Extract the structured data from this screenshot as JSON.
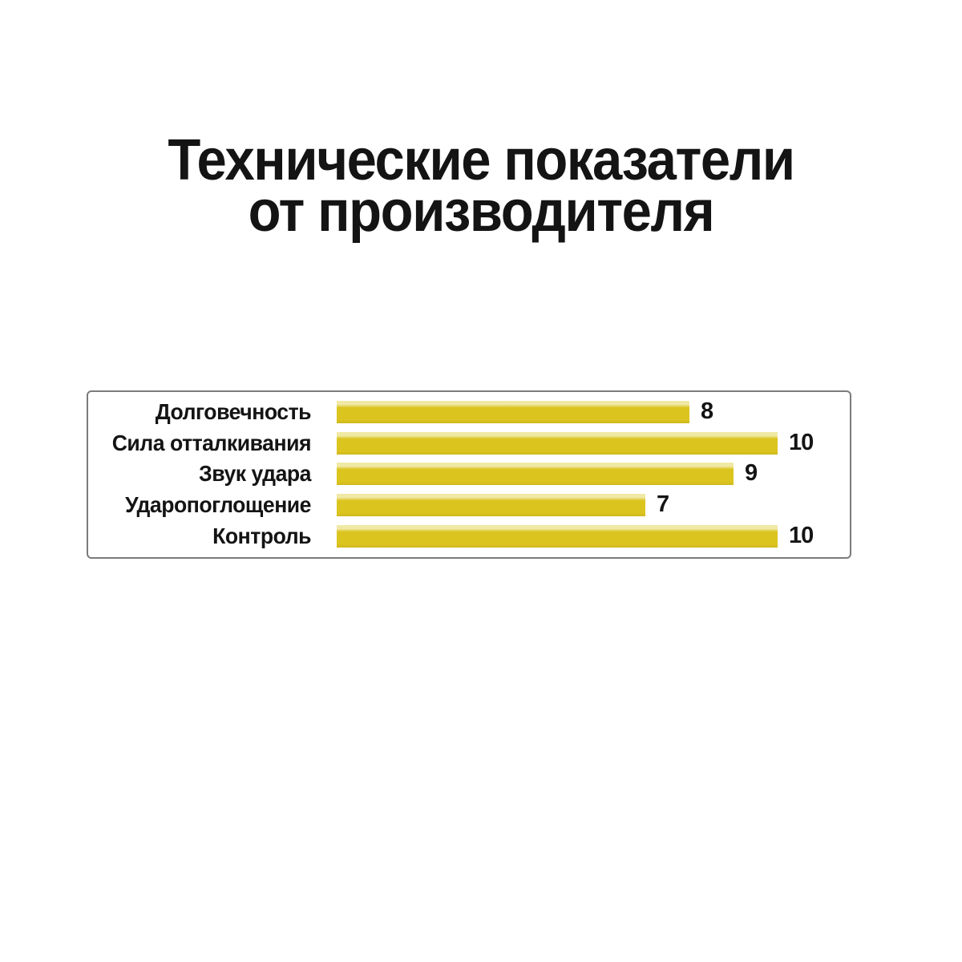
{
  "header": {
    "title_line1": "Технические показатели",
    "title_line2": "от производителя"
  },
  "chart_data": {
    "type": "bar",
    "orientation": "horizontal",
    "title": "Технические показатели от производителя",
    "categories": [
      "Долговечность",
      "Сила отталкивания",
      "Звук удара",
      "Ударопоглощение",
      "Контроль"
    ],
    "values": [
      8,
      10,
      9,
      7,
      10
    ],
    "xlim": [
      0,
      10
    ],
    "value_labels_shown": true,
    "axis_ticks_shown": false,
    "grid": false,
    "legend_position": "none",
    "colors": {
      "bar": "#dcc41f",
      "bar_highlight_top": "#f0e9a6",
      "bar_shade_bottom": "#cdb71c",
      "panel_border": "#7b7b7b",
      "text": "#141414",
      "background": "#ffffff"
    }
  }
}
